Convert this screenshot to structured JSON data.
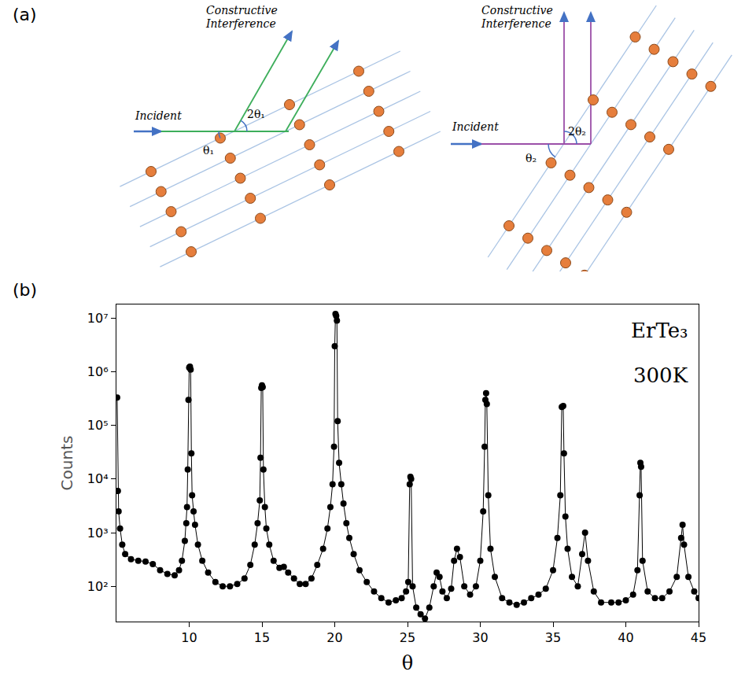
{
  "panel_labels": [
    "(a)",
    "(b)"
  ],
  "diagram": {
    "panels": [
      {
        "incident": "Incident",
        "outgoing": "Constructive Interference",
        "angle": "θ₁",
        "double_angle": "2θ₁"
      },
      {
        "incident": "Incident",
        "outgoing": "Constructive Interference",
        "angle": "θ₂",
        "double_angle": "2θ₂"
      }
    ]
  },
  "chart_data": {
    "type": "line",
    "x_label": "θ",
    "y_label": "Counts",
    "annotations": [
      "ErTe₃",
      "300K"
    ],
    "log": "y",
    "grid": false,
    "color": "#000000",
    "marker": "circle",
    "xlim": [
      5,
      45
    ],
    "xticks": [
      10,
      15,
      20,
      25,
      30,
      35,
      40,
      45
    ],
    "ylim": [
      22,
      18000000
    ],
    "yticks": [
      {
        "value": 100,
        "label": "10²"
      },
      {
        "value": 1000,
        "label": "10³"
      },
      {
        "value": 10000,
        "label": "10⁴"
      },
      {
        "value": 100000,
        "label": "10⁵"
      },
      {
        "value": 1000000,
        "label": "10⁶"
      },
      {
        "value": 10000000,
        "label": "10⁷"
      }
    ],
    "x": [
      5.05,
      5.1,
      5.15,
      5.25,
      5.4,
      5.6,
      6.0,
      6.5,
      7.0,
      7.5,
      8.0,
      8.5,
      9.0,
      9.3,
      9.5,
      9.7,
      9.8,
      9.85,
      9.9,
      9.95,
      10.0,
      10.05,
      10.1,
      10.15,
      10.2,
      10.3,
      10.4,
      10.6,
      10.9,
      11.3,
      11.8,
      12.3,
      12.8,
      13.3,
      13.8,
      14.2,
      14.5,
      14.7,
      14.85,
      14.9,
      14.95,
      15.0,
      15.05,
      15.1,
      15.2,
      15.3,
      15.5,
      15.8,
      16.2,
      16.5,
      16.8,
      17.2,
      17.6,
      18.0,
      18.4,
      18.8,
      19.2,
      19.5,
      19.7,
      19.85,
      19.95,
      20.0,
      20.05,
      20.1,
      20.15,
      20.2,
      20.3,
      20.45,
      20.6,
      20.8,
      21.0,
      21.3,
      21.7,
      22.2,
      22.7,
      23.2,
      23.7,
      24.2,
      24.6,
      24.9,
      25.05,
      25.15,
      25.2,
      25.25,
      25.35,
      25.6,
      25.9,
      26.2,
      26.5,
      26.8,
      27.0,
      27.2,
      27.4,
      27.7,
      28.0,
      28.2,
      28.4,
      28.6,
      28.9,
      29.3,
      29.7,
      30.0,
      30.2,
      30.3,
      30.35,
      30.4,
      30.45,
      30.55,
      30.7,
      31.0,
      31.5,
      32.0,
      32.5,
      33.0,
      33.5,
      34.0,
      34.5,
      35.0,
      35.3,
      35.5,
      35.6,
      35.7,
      35.75,
      35.85,
      36.0,
      36.3,
      36.7,
      37.0,
      37.2,
      37.4,
      37.8,
      38.3,
      39.0,
      39.5,
      40.0,
      40.5,
      40.8,
      40.95,
      41.0,
      41.05,
      41.15,
      41.5,
      42.0,
      42.5,
      43.0,
      43.5,
      43.8,
      43.9,
      44.0,
      44.3,
      44.7,
      45.0
    ],
    "values": [
      330000,
      6000,
      2500,
      1200,
      600,
      400,
      320,
      300,
      290,
      260,
      200,
      170,
      160,
      200,
      300,
      700,
      1500,
      3000,
      15000,
      300000,
      1200000,
      1250000,
      1100000,
      30000,
      5000,
      2500,
      1400,
      600,
      300,
      180,
      120,
      100,
      100,
      110,
      140,
      250,
      600,
      1500,
      4000,
      25000,
      500000,
      560000,
      520000,
      15000,
      3000,
      1200,
      600,
      300,
      220,
      230,
      180,
      140,
      110,
      110,
      140,
      250,
      500,
      1200,
      3000,
      8000,
      40000,
      3000000,
      12000000,
      11000000,
      9000000,
      120000,
      20000,
      8000,
      3500,
      1500,
      800,
      400,
      200,
      120,
      80,
      60,
      50,
      55,
      60,
      80,
      120,
      8000,
      11000,
      10000,
      100,
      40,
      30,
      25,
      40,
      100,
      180,
      150,
      80,
      60,
      90,
      300,
      500,
      350,
      100,
      70,
      100,
      300,
      2500,
      40000,
      300000,
      400000,
      250000,
      5000,
      500,
      150,
      60,
      50,
      45,
      50,
      60,
      70,
      90,
      200,
      800,
      5000,
      220000,
      230000,
      30000,
      2000,
      500,
      150,
      100,
      400,
      1000,
      300,
      80,
      50,
      50,
      50,
      55,
      70,
      200,
      5000,
      20000,
      17000,
      300,
      80,
      60,
      60,
      80,
      150,
      800,
      1400,
      600,
      150,
      80,
      60
    ]
  }
}
